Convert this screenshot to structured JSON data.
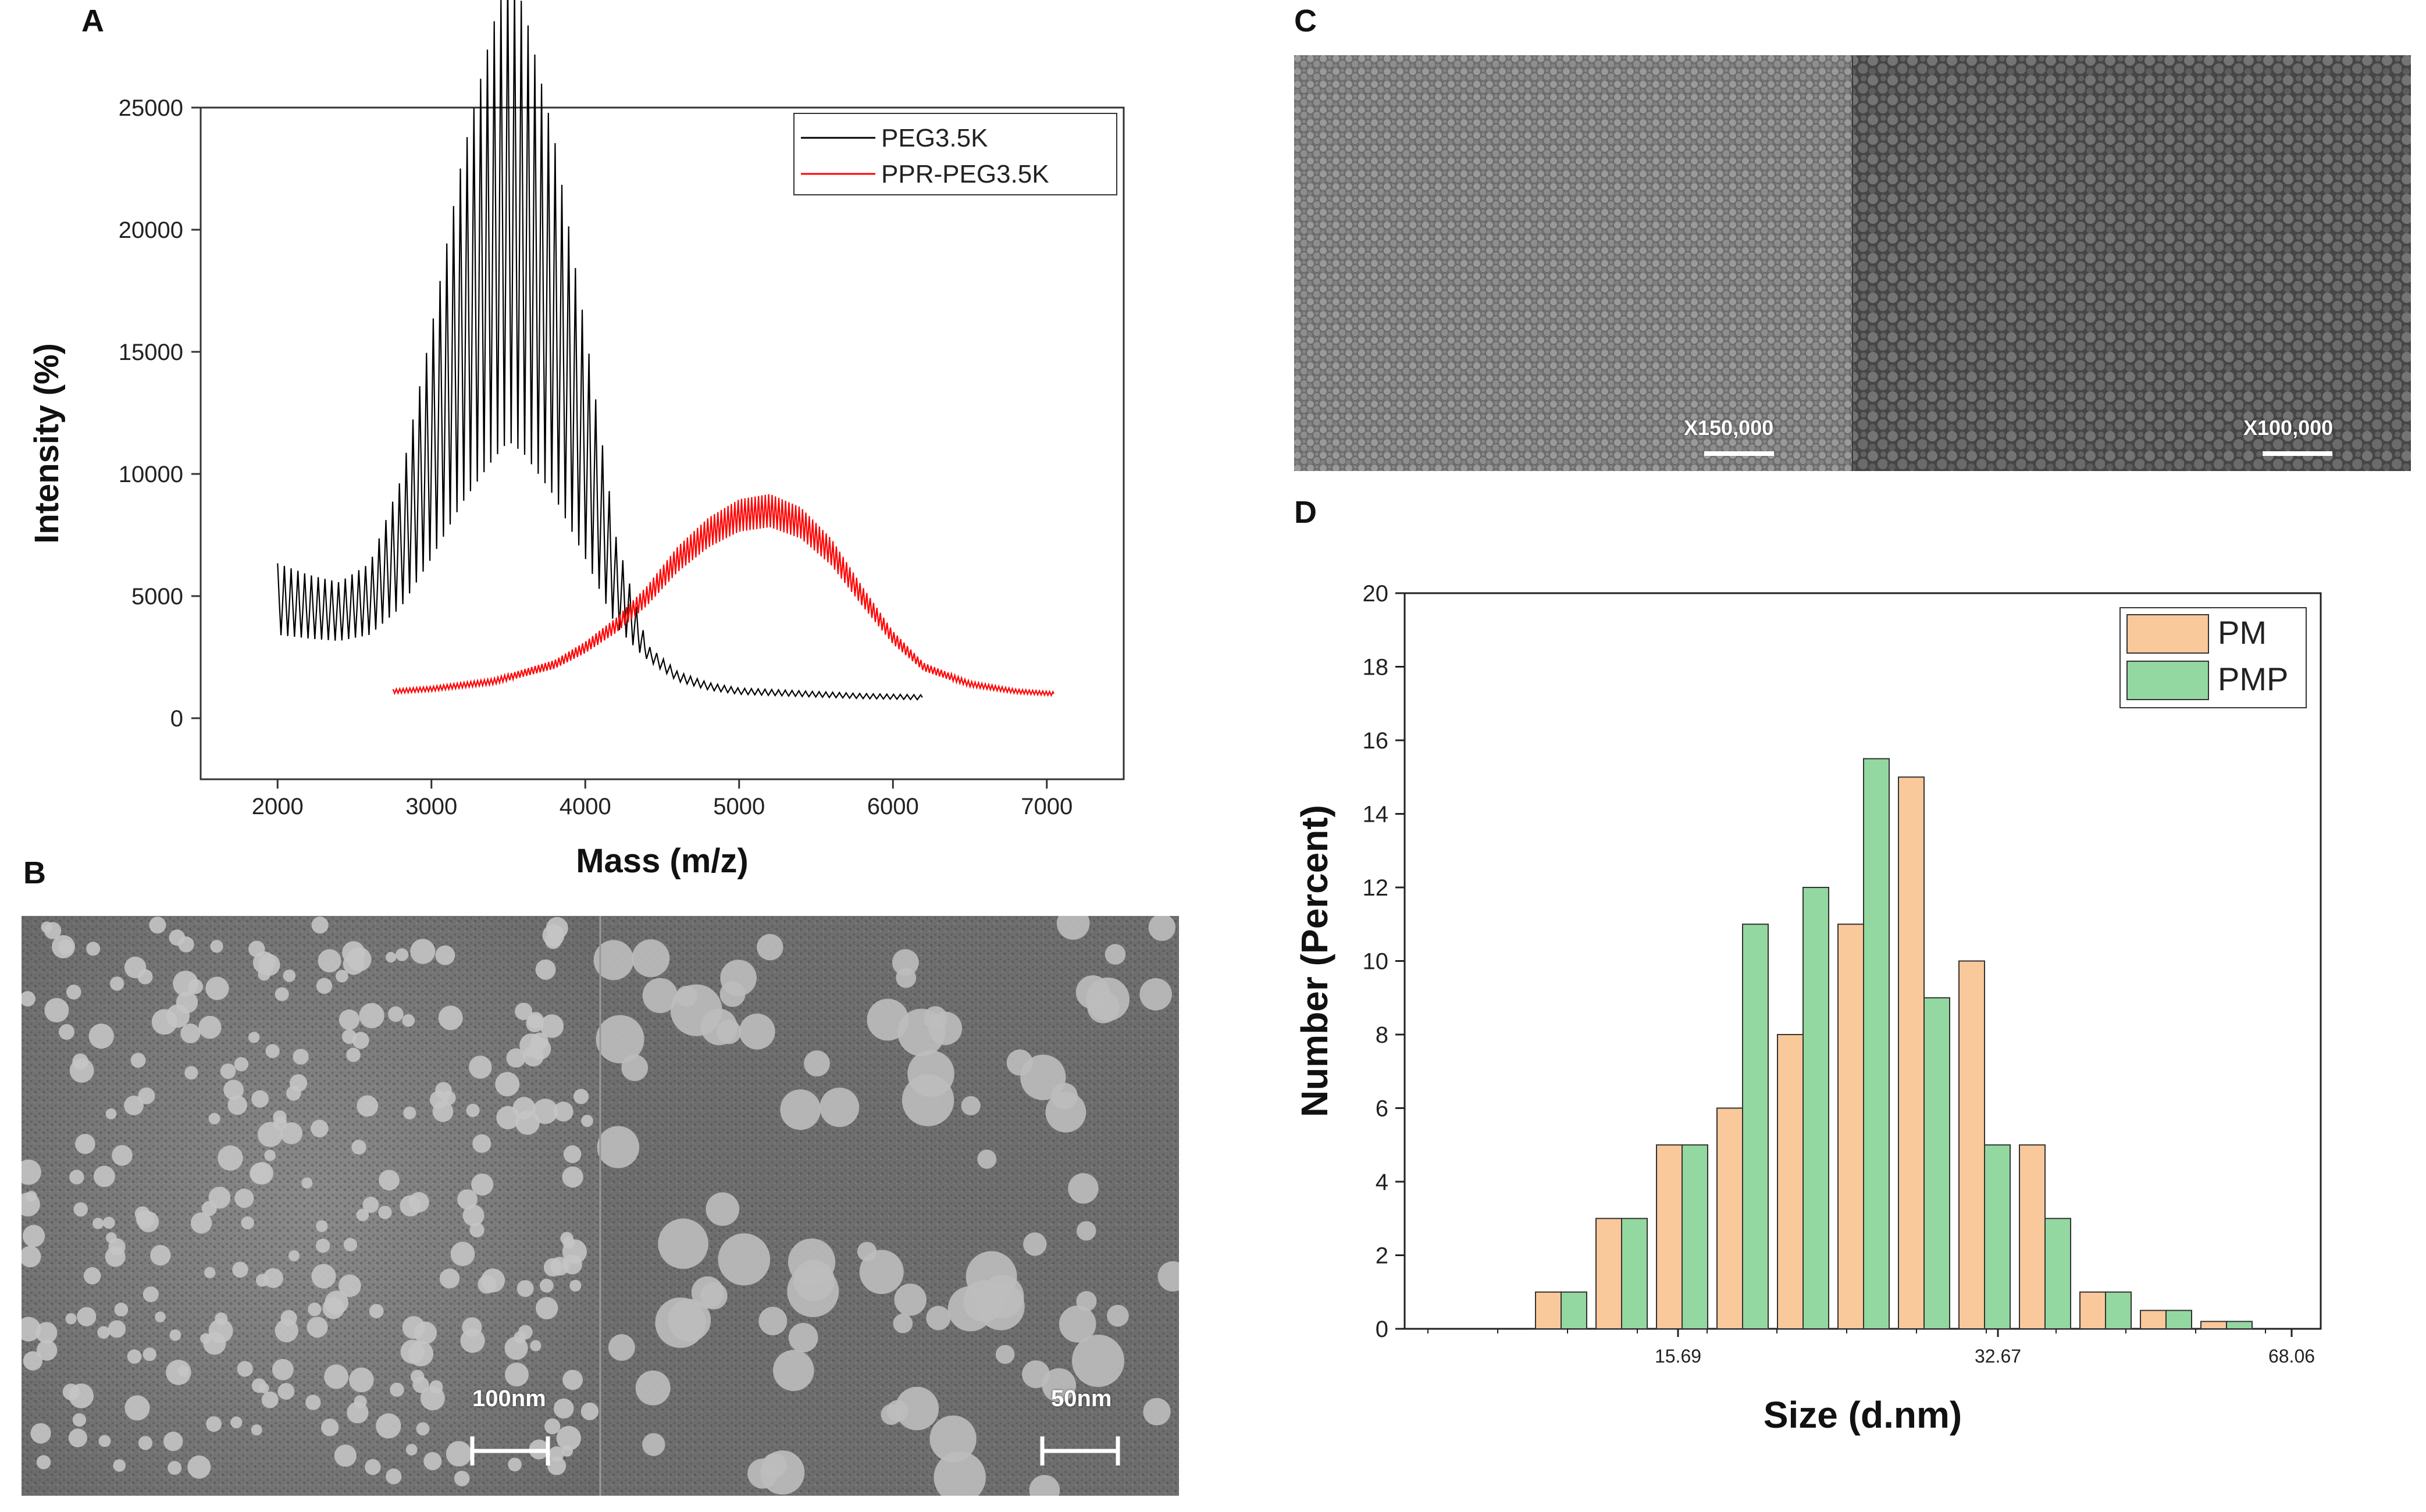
{
  "panels": {
    "a": "A",
    "b": "B",
    "c": "C",
    "d": "D"
  },
  "micrographs": {
    "tem_left_scale": "100nm",
    "tem_right_scale": "50nm",
    "sem_left_mag": "X150,000",
    "sem_right_mag": "X100,000"
  },
  "chart_data": [
    {
      "type": "line",
      "xlabel": "Mass (m/z)",
      "ylabel": "Intensity (%)",
      "xlim": [
        1500,
        7500
      ],
      "ylim": [
        -2500,
        25000
      ],
      "xticks": [
        2000,
        3000,
        4000,
        5000,
        6000,
        7000
      ],
      "yticks": [
        0,
        5000,
        10000,
        15000,
        20000,
        25000
      ],
      "legend": {
        "position": "top-right",
        "entries": [
          "PEG3.5K",
          "PPR-PEG3.5K"
        ]
      },
      "series": [
        {
          "name": "PEG3.5K",
          "color": "#000000",
          "x": [
            2000,
            2200,
            2400,
            2600,
            2800,
            3000,
            3200,
            3400,
            3500,
            3600,
            3800,
            4000,
            4200,
            4400,
            4600,
            4800,
            5000,
            5400,
            5800,
            6200
          ],
          "y": [
            4800,
            4500,
            4300,
            4800,
            7000,
            11000,
            15500,
            19000,
            20500,
            19500,
            16000,
            11000,
            5500,
            2700,
            1700,
            1300,
            1100,
            1000,
            900,
            850
          ]
        },
        {
          "name": "PPR-PEG3.5K",
          "color": "#ff0000",
          "x": [
            2750,
            3000,
            3400,
            3800,
            4000,
            4200,
            4400,
            4600,
            4800,
            5000,
            5200,
            5400,
            5600,
            5800,
            6000,
            6200,
            6500,
            6800,
            7050
          ],
          "y": [
            1100,
            1200,
            1500,
            2200,
            2900,
            3800,
            5000,
            6500,
            7600,
            8300,
            8500,
            8000,
            6800,
            5000,
            3300,
            2100,
            1400,
            1100,
            1000
          ]
        }
      ]
    },
    {
      "type": "bar",
      "xlabel": "Size (d.nm)",
      "ylabel": "Number (Percent)",
      "ylim": [
        0,
        20
      ],
      "yticks": [
        0,
        2,
        4,
        6,
        8,
        10,
        12,
        14,
        16,
        18,
        20
      ],
      "xtick_labels": [
        "15.69",
        "32.67",
        "68.06"
      ],
      "legend": {
        "position": "top-right"
      },
      "series": [
        {
          "name": "PM",
          "color": "#f9c89b",
          "values": [
            1,
            3,
            5,
            6,
            8,
            11,
            15,
            10,
            5,
            1,
            0.5,
            0.2
          ]
        },
        {
          "name": "PMP",
          "color": "#93d8a0",
          "values": [
            1,
            3,
            5,
            11,
            12,
            15.5,
            9,
            5,
            3,
            1,
            0.5,
            0.2
          ]
        }
      ]
    }
  ]
}
